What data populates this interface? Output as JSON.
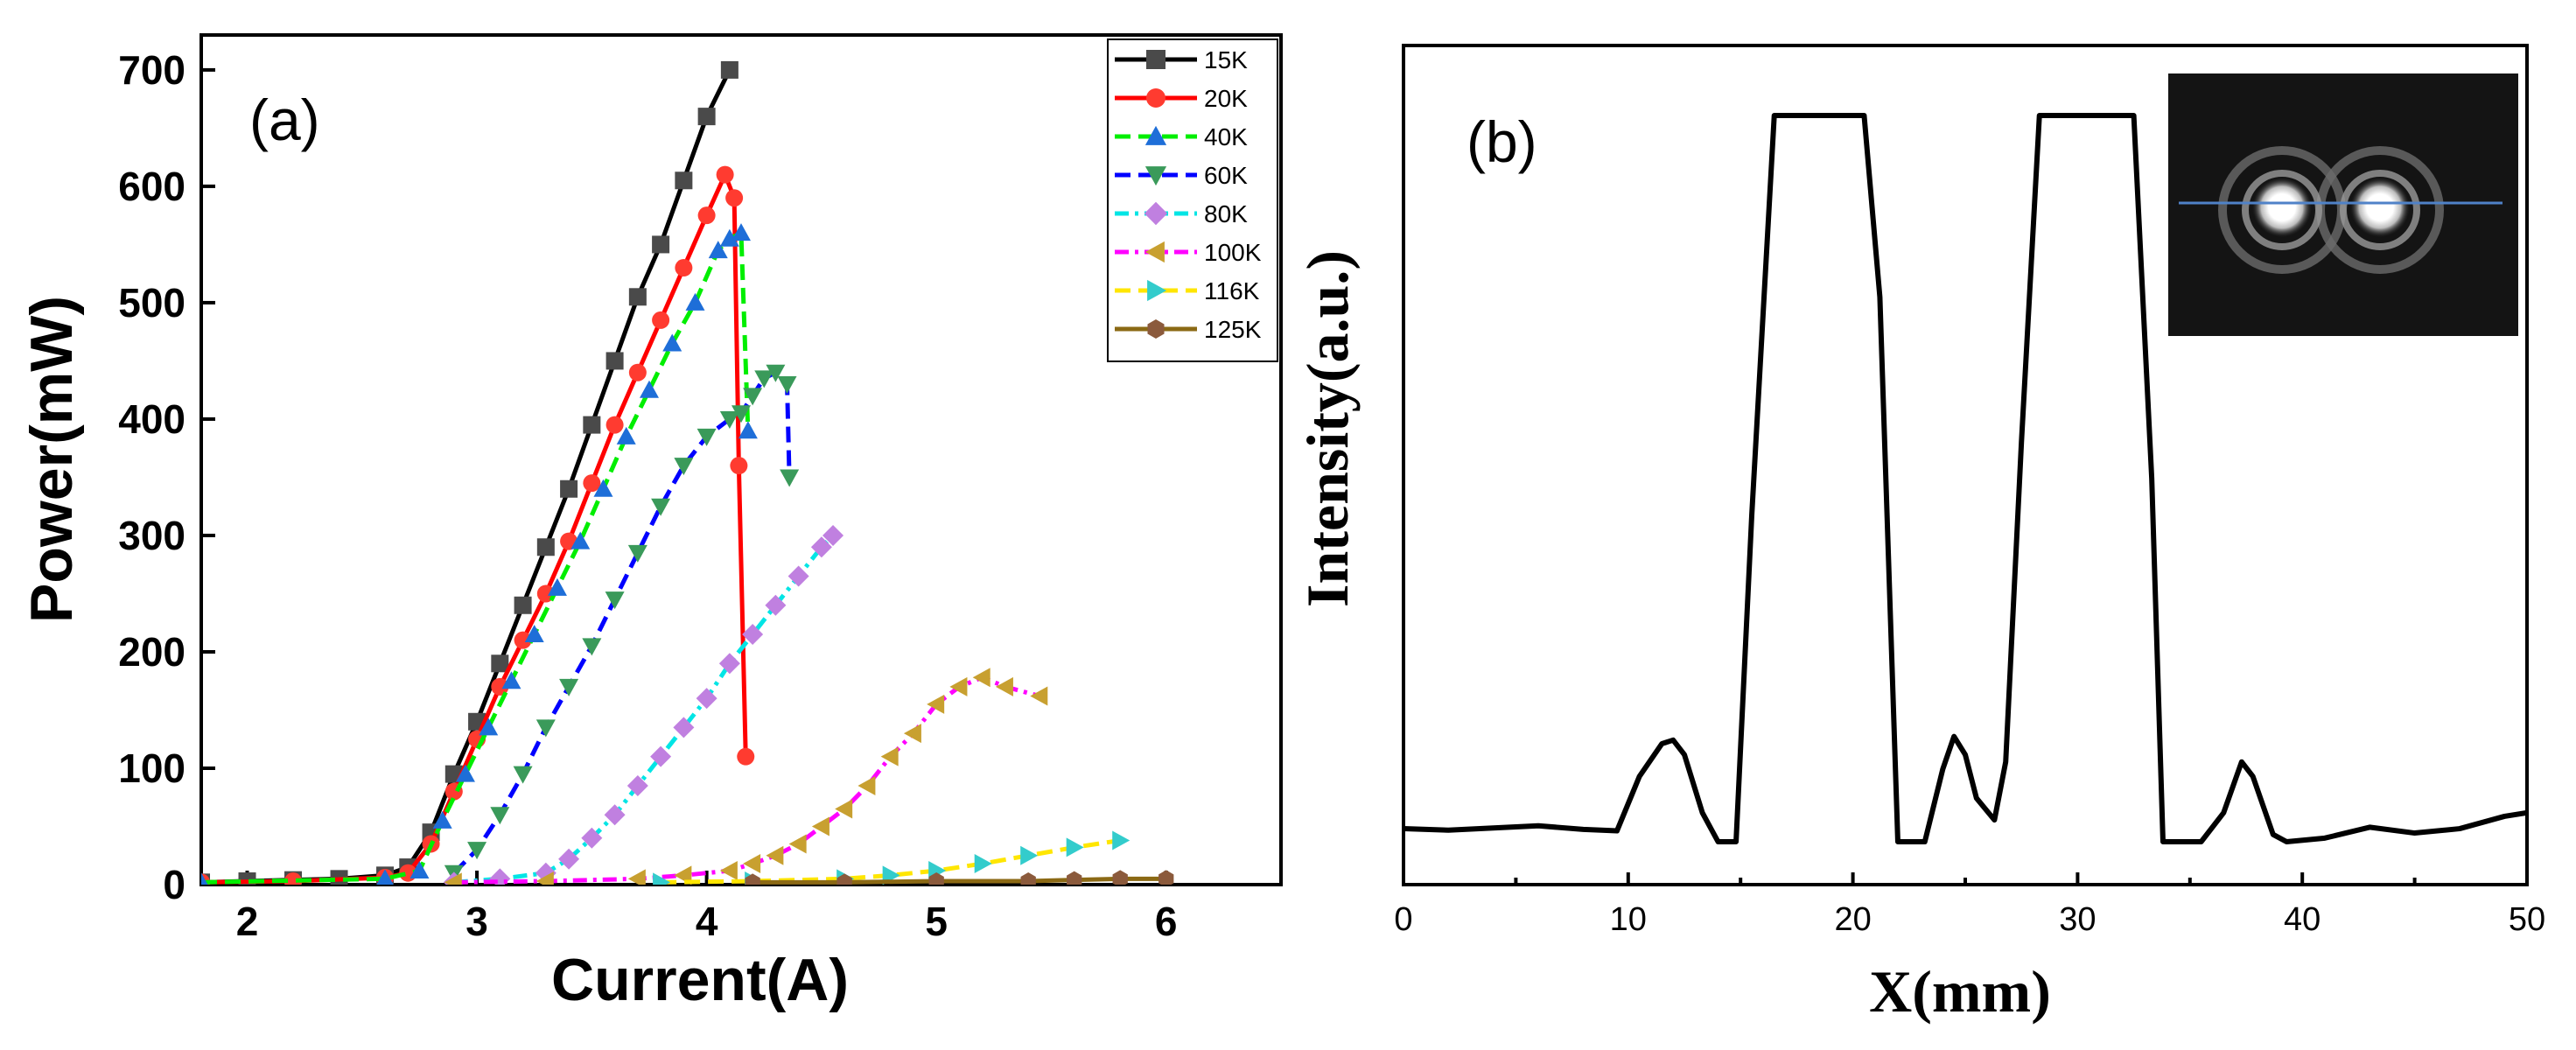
{
  "chart_data": [
    {
      "type": "line",
      "panel_label": "(a)",
      "title": "",
      "xlabel": "Current(A)",
      "ylabel": "Power(mW)",
      "xlim": [
        1.8,
        6.5
      ],
      "ylim": [
        0,
        730
      ],
      "xticks": [
        2,
        3,
        4,
        5,
        6
      ],
      "yticks": [
        0,
        100,
        200,
        300,
        400,
        500,
        600,
        700
      ],
      "legend_position": "top-right",
      "series": [
        {
          "name": "15K",
          "color": "#000000",
          "marker": "square",
          "marker_color": "#4a4a4a",
          "dash": "solid",
          "x": [
            1.8,
            2.0,
            2.2,
            2.4,
            2.6,
            2.7,
            2.8,
            2.9,
            3.0,
            3.1,
            3.2,
            3.3,
            3.4,
            3.5,
            3.6,
            3.7,
            3.8,
            3.9,
            4.0,
            4.1
          ],
          "y": [
            2,
            3,
            4,
            5,
            8,
            15,
            45,
            95,
            140,
            190,
            240,
            290,
            340,
            395,
            450,
            505,
            550,
            605,
            660,
            700
          ]
        },
        {
          "name": "20K",
          "color": "#ff0000",
          "marker": "circle",
          "marker_color": "#ff3b30",
          "dash": "solid",
          "x": [
            1.8,
            2.2,
            2.6,
            2.7,
            2.8,
            2.9,
            3.0,
            3.1,
            3.2,
            3.3,
            3.4,
            3.5,
            3.6,
            3.7,
            3.8,
            3.9,
            4.0,
            4.08,
            4.12,
            4.14,
            4.17
          ],
          "y": [
            2,
            3,
            6,
            10,
            35,
            80,
            125,
            170,
            210,
            250,
            295,
            345,
            395,
            440,
            485,
            530,
            575,
            610,
            590,
            360,
            110
          ]
        },
        {
          "name": "40K",
          "color": "#00ee00",
          "marker": "triangle-up",
          "marker_color": "#1e6ed8",
          "dash": "dash",
          "x": [
            1.8,
            2.6,
            2.75,
            2.85,
            2.95,
            3.05,
            3.15,
            3.25,
            3.35,
            3.45,
            3.55,
            3.65,
            3.75,
            3.85,
            3.95,
            4.05,
            4.1,
            4.15,
            4.18
          ],
          "y": [
            2,
            5,
            12,
            55,
            95,
            135,
            175,
            215,
            255,
            295,
            340,
            385,
            425,
            465,
            500,
            545,
            555,
            560,
            390
          ]
        },
        {
          "name": "60K",
          "color": "#0000ff",
          "marker": "triangle-down",
          "marker_color": "#3a9a5a",
          "dash": "dash",
          "x": [
            2.9,
            3.0,
            3.1,
            3.2,
            3.3,
            3.4,
            3.5,
            3.6,
            3.7,
            3.8,
            3.9,
            4.0,
            4.1,
            4.15,
            4.2,
            4.25,
            4.3,
            4.35,
            4.36
          ],
          "y": [
            10,
            30,
            60,
            95,
            135,
            170,
            205,
            245,
            285,
            325,
            360,
            385,
            400,
            405,
            420,
            435,
            440,
            430,
            350
          ]
        },
        {
          "name": "80K",
          "color": "#00e5e5",
          "marker": "diamond",
          "marker_color": "#c080e0",
          "dash": "dashdot",
          "x": [
            2.9,
            3.1,
            3.3,
            3.4,
            3.5,
            3.6,
            3.7,
            3.8,
            3.9,
            4.0,
            4.1,
            4.2,
            4.3,
            4.4,
            4.5,
            4.55
          ],
          "y": [
            2,
            5,
            10,
            22,
            40,
            60,
            85,
            110,
            135,
            160,
            190,
            215,
            240,
            265,
            290,
            300
          ]
        },
        {
          "name": "100K",
          "color": "#ff00ff",
          "marker": "triangle-left",
          "marker_color": "#c8a030",
          "dash": "dashdot",
          "x": [
            2.9,
            3.3,
            3.7,
            3.9,
            4.1,
            4.2,
            4.3,
            4.4,
            4.5,
            4.6,
            4.7,
            4.8,
            4.9,
            5.0,
            5.1,
            5.2,
            5.3,
            5.45
          ],
          "y": [
            2,
            3,
            5,
            8,
            12,
            18,
            25,
            35,
            50,
            65,
            85,
            110,
            130,
            155,
            170,
            178,
            170,
            162
          ]
        },
        {
          "name": "116K",
          "color": "#ffe600",
          "marker": "triangle-right",
          "marker_color": "#33cccc",
          "dash": "dash",
          "x": [
            3.8,
            4.2,
            4.6,
            4.8,
            5.0,
            5.2,
            5.4,
            5.6,
            5.8
          ],
          "y": [
            2,
            3,
            5,
            8,
            12,
            18,
            25,
            32,
            38
          ]
        },
        {
          "name": "125K",
          "color": "#8b6914",
          "marker": "hexagon",
          "marker_color": "#8b5a3c",
          "dash": "solid",
          "x": [
            4.2,
            4.6,
            5.0,
            5.4,
            5.6,
            5.8,
            6.0
          ],
          "y": [
            2,
            2,
            3,
            3,
            4,
            5,
            5
          ]
        }
      ]
    },
    {
      "type": "line",
      "panel_label": "(b)",
      "title": "",
      "xlabel": "X(mm)",
      "ylabel": "Intensity(a.u.)",
      "xlim": [
        0,
        50
      ],
      "ylim": [
        0,
        1
      ],
      "xticks": [
        0,
        10,
        20,
        30,
        40,
        50
      ],
      "yticks": [],
      "legend_position": "none",
      "inset": "beam-profile-image",
      "series": [
        {
          "name": "profile",
          "x": [
            0,
            2,
            4,
            6,
            8,
            9.5,
            10.5,
            11.5,
            12,
            12.5,
            13.3,
            14,
            14.8,
            15.5,
            16.5,
            17,
            20.5,
            21.2,
            22,
            23.2,
            24,
            24.5,
            25,
            25.5,
            26.3,
            26.8,
            27.5,
            28.3,
            29,
            32.5,
            33.3,
            33.8,
            35.5,
            36.5,
            37.3,
            37.8,
            38.7,
            39.3,
            41,
            43,
            45,
            47,
            49,
            50
          ],
          "y": [
            0.018,
            0.016,
            0.019,
            0.022,
            0.017,
            0.015,
            0.09,
            0.135,
            0.14,
            0.12,
            0.04,
            0,
            0,
            0.45,
            1,
            1,
            1,
            0.75,
            0,
            0,
            0.1,
            0.145,
            0.12,
            0.06,
            0.03,
            0.11,
            0.55,
            1,
            1,
            1,
            0.5,
            0,
            0,
            0.04,
            0.11,
            0.09,
            0.01,
            0,
            0.005,
            0.02,
            0.012,
            0.018,
            0.035,
            0.04
          ]
        }
      ]
    }
  ]
}
